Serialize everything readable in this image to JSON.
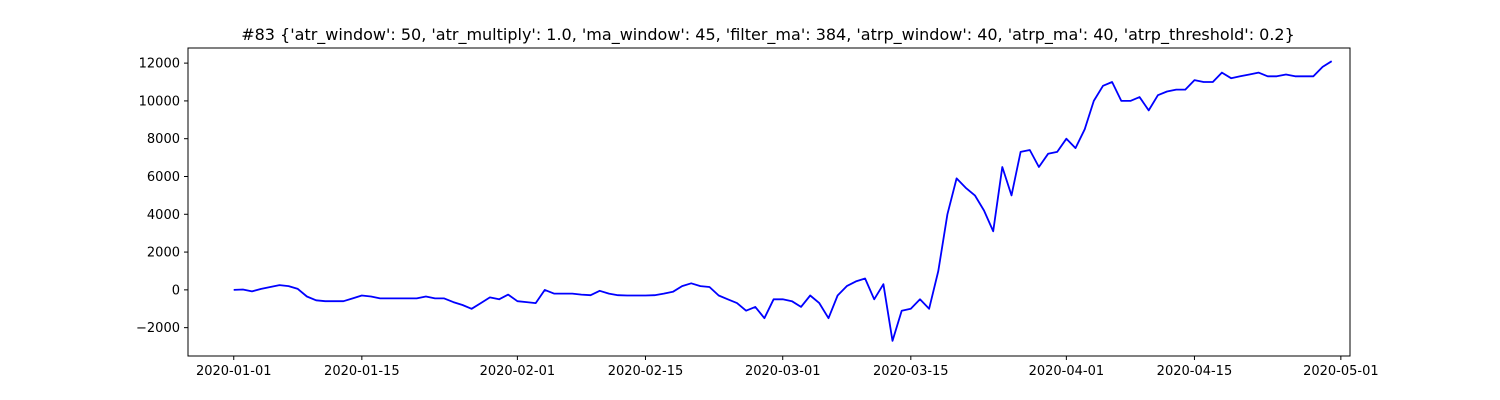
{
  "chart_data": {
    "type": "line",
    "title": "#83 {'atr_window': 50, 'atr_multiply': 1.0, 'ma_window': 45, 'filter_ma': 384, 'atrp_window': 40, 'atrp_ma': 40, 'atrp_threshold': 0.2}",
    "xlabel": "",
    "ylabel": "",
    "x_axis": "date",
    "xlim": [
      "2019-12-27",
      "2020-05-02"
    ],
    "ylim": [
      -3500,
      12800
    ],
    "line_color": "#0000ff",
    "grid": false,
    "legend": "none",
    "yticks": [
      -2000,
      0,
      2000,
      4000,
      6000,
      8000,
      10000,
      12000
    ],
    "ytick_labels": [
      "−2000",
      "0",
      "2000",
      "4000",
      "6000",
      "8000",
      "10000",
      "12000"
    ],
    "xticks": [
      "2020-01-01",
      "2020-01-15",
      "2020-02-01",
      "2020-02-15",
      "2020-03-01",
      "2020-03-15",
      "2020-04-01",
      "2020-04-15",
      "2020-05-01"
    ],
    "series": [
      {
        "x": [
          "2020-01-01",
          "2020-01-02",
          "2020-01-03",
          "2020-01-04",
          "2020-01-05",
          "2020-01-06",
          "2020-01-07",
          "2020-01-08",
          "2020-01-09",
          "2020-01-10",
          "2020-01-11",
          "2020-01-12",
          "2020-01-13",
          "2020-01-14",
          "2020-01-15",
          "2020-01-16",
          "2020-01-17",
          "2020-01-18",
          "2020-01-19",
          "2020-01-20",
          "2020-01-21",
          "2020-01-22",
          "2020-01-23",
          "2020-01-24",
          "2020-01-25",
          "2020-01-26",
          "2020-01-27",
          "2020-01-28",
          "2020-01-29",
          "2020-01-30",
          "2020-01-31",
          "2020-02-01",
          "2020-02-02",
          "2020-02-03",
          "2020-02-04",
          "2020-02-05",
          "2020-02-06",
          "2020-02-07",
          "2020-02-08",
          "2020-02-09",
          "2020-02-10",
          "2020-02-11",
          "2020-02-12",
          "2020-02-13",
          "2020-02-14",
          "2020-02-15",
          "2020-02-16",
          "2020-02-17",
          "2020-02-18",
          "2020-02-19",
          "2020-02-20",
          "2020-02-21",
          "2020-02-22",
          "2020-02-23",
          "2020-02-24",
          "2020-02-25",
          "2020-02-26",
          "2020-02-27",
          "2020-02-28",
          "2020-02-29",
          "2020-03-01",
          "2020-03-02",
          "2020-03-03",
          "2020-03-04",
          "2020-03-05",
          "2020-03-06",
          "2020-03-07",
          "2020-03-08",
          "2020-03-09",
          "2020-03-10",
          "2020-03-11",
          "2020-03-12",
          "2020-03-13",
          "2020-03-14",
          "2020-03-15",
          "2020-03-16",
          "2020-03-17",
          "2020-03-18",
          "2020-03-19",
          "2020-03-20",
          "2020-03-21",
          "2020-03-22",
          "2020-03-23",
          "2020-03-24",
          "2020-03-25",
          "2020-03-26",
          "2020-03-27",
          "2020-03-28",
          "2020-03-29",
          "2020-03-30",
          "2020-03-31",
          "2020-04-01",
          "2020-04-02",
          "2020-04-03",
          "2020-04-04",
          "2020-04-05",
          "2020-04-06",
          "2020-04-07",
          "2020-04-08",
          "2020-04-09",
          "2020-04-10",
          "2020-04-11",
          "2020-04-12",
          "2020-04-13",
          "2020-04-14",
          "2020-04-15",
          "2020-04-16",
          "2020-04-17",
          "2020-04-18",
          "2020-04-19",
          "2020-04-20",
          "2020-04-21",
          "2020-04-22",
          "2020-04-23",
          "2020-04-24",
          "2020-04-25",
          "2020-04-26",
          "2020-04-27",
          "2020-04-28",
          "2020-04-29",
          "2020-04-30"
        ],
        "y": [
          0,
          20,
          -80,
          50,
          150,
          250,
          200,
          50,
          -350,
          -550,
          -600,
          -600,
          -600,
          -450,
          -300,
          -350,
          -450,
          -450,
          -450,
          -450,
          -450,
          -350,
          -450,
          -450,
          -650,
          -800,
          -1000,
          -700,
          -400,
          -500,
          -250,
          -600,
          -650,
          -700,
          0,
          -200,
          -200,
          -200,
          -250,
          -280,
          -50,
          -200,
          -280,
          -300,
          -300,
          -300,
          -280,
          -200,
          -100,
          200,
          350,
          200,
          150,
          -300,
          -500,
          -700,
          -1100,
          -900,
          -1500,
          -500,
          -500,
          -600,
          -900,
          -300,
          -700,
          -1500,
          -300,
          200,
          450,
          600,
          -500,
          300,
          -2700,
          -1100,
          -1000,
          -500,
          -1000,
          1000,
          4000,
          5900,
          5400,
          5000,
          4200,
          3100,
          6500,
          5000,
          7300,
          7400,
          6500,
          7200,
          7300,
          8000,
          7500,
          8500,
          10000,
          10800,
          11000,
          10000,
          10000,
          10200,
          9500,
          10300,
          10500,
          10600,
          10600,
          11100,
          11000,
          11000,
          11500,
          11200,
          11300,
          11400,
          11500,
          11300,
          11300,
          11400,
          11300,
          11300,
          11300,
          11800,
          12100
        ]
      }
    ]
  }
}
